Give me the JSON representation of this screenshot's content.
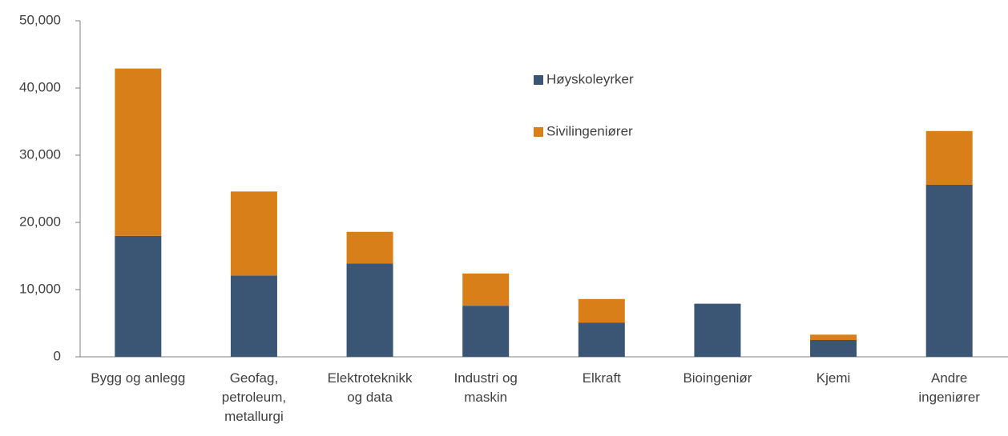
{
  "chart_data": {
    "type": "stacked_bar",
    "categories": [
      "Bygg og anlegg",
      "Geofag,\npetroleum,\nmetallurgi",
      "Elektroteknikk\nog data",
      "Industri  og\nmaskin",
      "Elkraft",
      "Bioingeniør",
      "Kjemi",
      "Andre\ningeniører"
    ],
    "series": [
      {
        "name": "Høyskoleyrker",
        "color": "#3a5674",
        "values": [
          18000,
          12100,
          13900,
          7600,
          5100,
          7900,
          2500,
          25600
        ]
      },
      {
        "name": "Sivilingeniører",
        "color": "#d97f1a",
        "values": [
          24900,
          12500,
          4700,
          4800,
          3500,
          0,
          800,
          8000
        ]
      }
    ],
    "ylim": [
      0,
      50000
    ],
    "yticks": [
      0,
      {
        "value": 10000,
        "label": "10,000"
      },
      {
        "value": 20000,
        "label": "20,000"
      },
      {
        "value": 30000,
        "label": "30,000"
      },
      {
        "value": 40000,
        "label": "40,000"
      },
      {
        "value": 50000,
        "label": "50,000"
      }
    ],
    "grid": false
  }
}
